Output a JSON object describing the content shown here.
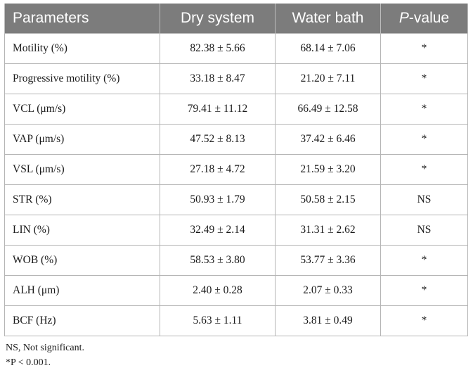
{
  "table": {
    "headers": {
      "parameters": "Parameters",
      "dry_system": "Dry system",
      "water_bath": "Water bath",
      "p_prefix": "P",
      "p_suffix": "-value"
    },
    "rows": [
      {
        "parameter": "Motility (%)",
        "dry": "82.38 ± 5.66",
        "water": "68.14 ± 7.06",
        "p": "*"
      },
      {
        "parameter": "Progressive motility (%)",
        "dry": "33.18 ± 8.47",
        "water": "21.20 ± 7.11",
        "p": "*"
      },
      {
        "parameter": "VCL (μm/s)",
        "dry": "79.41 ± 11.12",
        "water": "66.49 ± 12.58",
        "p": "*"
      },
      {
        "parameter": "VAP (μm/s)",
        "dry": "47.52 ± 8.13",
        "water": "37.42 ± 6.46",
        "p": "*"
      },
      {
        "parameter": "VSL (μm/s)",
        "dry": "27.18 ± 4.72",
        "water": "21.59 ± 3.20",
        "p": "*"
      },
      {
        "parameter": "STR (%)",
        "dry": "50.93 ± 1.79",
        "water": "50.58 ± 2.15",
        "p": "NS"
      },
      {
        "parameter": "LIN (%)",
        "dry": "32.49 ± 2.14",
        "water": "31.31 ± 2.62",
        "p": "NS"
      },
      {
        "parameter": "WOB (%)",
        "dry": "58.53 ± 3.80",
        "water": "53.77 ± 3.36",
        "p": "*"
      },
      {
        "parameter": "ALH (μm)",
        "dry": "2.40 ± 0.28",
        "water": "2.07 ± 0.33",
        "p": "*"
      },
      {
        "parameter": "BCF (Hz)",
        "dry": "5.63 ± 1.11",
        "water": "3.81 ± 0.49",
        "p": "*"
      }
    ]
  },
  "footnotes": {
    "ns": "NS, Not significant.",
    "significance": "*P < 0.001."
  },
  "colors": {
    "header_bg": "#7c7c7c",
    "header_text": "#ffffff",
    "grid": "#b5b5b5"
  }
}
